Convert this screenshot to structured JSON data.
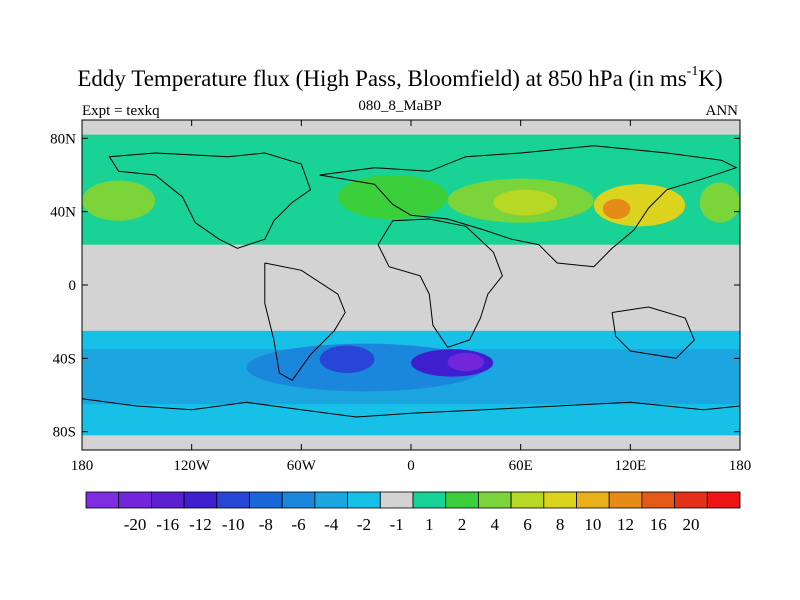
{
  "figure": {
    "title_main": "Eddy Temperature flux (High Pass, Bloomfield) at 850 hPa (in ms",
    "title_sup": "-1",
    "title_end": "K)",
    "subtitle": "080_8_MaBP",
    "expt": "Expt = texkq",
    "season": "ANN"
  },
  "map": {
    "projection": "cylindrical-equidistant",
    "lon_range": [
      -180,
      180
    ],
    "lat_range": [
      -90,
      90
    ],
    "x_ticks": [
      {
        "lon": -180,
        "label": "180"
      },
      {
        "lon": -120,
        "label": "120W"
      },
      {
        "lon": -60,
        "label": "60W"
      },
      {
        "lon": 0,
        "label": "0"
      },
      {
        "lon": 60,
        "label": "60E"
      },
      {
        "lon": 120,
        "label": "120E"
      },
      {
        "lon": 180,
        "label": "180"
      }
    ],
    "y_ticks": [
      {
        "lat": 80,
        "label": "80N"
      },
      {
        "lat": 40,
        "label": "40N"
      },
      {
        "lat": 0,
        "label": "0"
      },
      {
        "lat": -40,
        "label": "40S"
      },
      {
        "lat": -80,
        "label": "80S"
      }
    ],
    "missing_color": "#d3d3d3",
    "fields": [
      {
        "name": "nh-storm-band",
        "lat": [
          22,
          82
        ],
        "level": 1
      },
      {
        "name": "nh-pacific-west",
        "lat": [
          35,
          57
        ],
        "lon": [
          -180,
          -140
        ],
        "level": 3
      },
      {
        "name": "nh-pacific-east",
        "lat": [
          34,
          56
        ],
        "lon": [
          158,
          180
        ],
        "level": 3
      },
      {
        "name": "nh-europe",
        "lat": [
          36,
          60
        ],
        "lon": [
          -40,
          20
        ],
        "level": 2
      },
      {
        "name": "nh-asia",
        "lat": [
          34,
          58
        ],
        "lon": [
          20,
          100
        ],
        "level": 3
      },
      {
        "name": "nh-asia-core",
        "lat": [
          38,
          52
        ],
        "lon": [
          45,
          80
        ],
        "level": 4
      },
      {
        "name": "nh-pacific-max",
        "lat": [
          32,
          55
        ],
        "lon": [
          100,
          150
        ],
        "level": 5
      },
      {
        "name": "nh-pacific-peak",
        "lat": [
          36,
          47
        ],
        "lon": [
          105,
          120
        ],
        "level": 7
      },
      {
        "name": "sh-storm-band",
        "lat": [
          -82,
          -25
        ],
        "level": -1
      },
      {
        "name": "sh-core",
        "lat": [
          -65,
          -35
        ],
        "level": -2
      },
      {
        "name": "sh-atlantic",
        "lat": [
          -58,
          -32
        ],
        "lon": [
          -90,
          40
        ],
        "level": -3
      },
      {
        "name": "sh-atlantic-deep",
        "lat": [
          -48,
          -33
        ],
        "lon": [
          -50,
          -20
        ],
        "level": -5
      },
      {
        "name": "sh-africa",
        "lat": [
          -50,
          -35
        ],
        "lon": [
          0,
          45
        ],
        "level": -6
      },
      {
        "name": "sh-africa-peak",
        "lat": [
          -47,
          -37
        ],
        "lon": [
          20,
          40
        ],
        "level": -8
      }
    ]
  },
  "colorbar": {
    "colors": [
      "#7e2ee0",
      "#7126dc",
      "#5a20d2",
      "#3d1fcf",
      "#2746d6",
      "#1a67dc",
      "#1a86dc",
      "#1ba6e0",
      "#16c0e6",
      "#d3d3d3",
      "#19d296",
      "#3bcf3b",
      "#7ad43a",
      "#b8d826",
      "#dcd31e",
      "#e8b01a",
      "#e68a18",
      "#e35a16",
      "#e33018",
      "#ec1414"
    ],
    "labels": [
      "-20",
      "-16",
      "-12",
      "-10",
      "-8",
      "-6",
      "-4",
      "-2",
      "-1",
      "1",
      "2",
      "4",
      "6",
      "8",
      "10",
      "12",
      "16",
      "20"
    ]
  }
}
